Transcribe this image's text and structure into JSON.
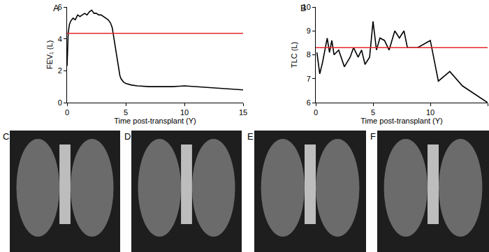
{
  "chart_data": [
    {
      "type": "line",
      "title": "A",
      "x_label": "Time post-transplant (Y)",
      "y_label": "FEV₁ (L)",
      "xlim": [
        0,
        15
      ],
      "xticks": [
        0,
        5,
        10,
        15
      ],
      "ylim": [
        0,
        6
      ],
      "yticks": [
        0,
        2,
        4,
        6
      ],
      "grid": false,
      "series": [
        {
          "color": "#000000",
          "line_style": "solid",
          "x": [
            0,
            0.05,
            0.1,
            0.2,
            0.3,
            0.5,
            0.7,
            0.9,
            1.1,
            1.3,
            1.5,
            1.7,
            1.9,
            2.1,
            2.3,
            2.5,
            2.7,
            2.9,
            3.1,
            3.3,
            3.5,
            3.7,
            3.85,
            4.0,
            4.1,
            4.2,
            4.3,
            4.4,
            4.5,
            4.6,
            4.8,
            5.0,
            5.5,
            6.0,
            7.0,
            8.0,
            9.0,
            10.0,
            11.0,
            12.0,
            13.0,
            14.0,
            15.0
          ],
          "values": [
            2.3,
            3.6,
            4.4,
            4.9,
            5.1,
            5.3,
            5.2,
            5.5,
            5.4,
            5.5,
            5.6,
            5.5,
            5.7,
            5.8,
            5.6,
            5.6,
            5.5,
            5.5,
            5.4,
            5.3,
            5.2,
            5.0,
            4.7,
            4.0,
            3.5,
            3.0,
            2.5,
            2.0,
            1.7,
            1.5,
            1.3,
            1.2,
            1.1,
            1.05,
            1.0,
            1.0,
            1.0,
            1.05,
            1.0,
            0.95,
            0.9,
            0.85,
            0.8
          ]
        },
        {
          "color": "#e8262b",
          "line_style": "solid",
          "x": [
            0,
            15
          ],
          "values": [
            4.35,
            4.35
          ]
        }
      ]
    },
    {
      "type": "line",
      "title": "B",
      "x_label": "Time post-transplant (Y)",
      "y_label": "TLC (L)",
      "xlim": [
        0,
        15
      ],
      "xticks": [
        0,
        5,
        10,
        15
      ],
      "ylim": [
        6,
        10
      ],
      "yticks": [
        6,
        7,
        8,
        9,
        10
      ],
      "grid": false,
      "series": [
        {
          "color": "#000000",
          "line_style": "solid",
          "x": [
            0.1,
            0.35,
            0.6,
            1.0,
            1.2,
            1.4,
            1.6,
            2.0,
            2.5,
            3.0,
            3.3,
            3.7,
            4.0,
            4.3,
            4.7,
            5.0,
            5.3,
            5.6,
            6.0,
            6.4,
            6.9,
            7.3,
            7.7,
            8.0,
            8.9,
            10.0,
            10.7,
            11.7,
            12.8,
            15.0
          ],
          "values": [
            8.1,
            7.2,
            7.7,
            8.7,
            8.1,
            8.6,
            8.0,
            8.2,
            7.5,
            7.9,
            8.3,
            7.9,
            8.2,
            7.6,
            7.9,
            9.4,
            8.2,
            8.7,
            8.6,
            8.2,
            9.0,
            8.7,
            9.0,
            8.3,
            8.3,
            8.6,
            6.9,
            7.3,
            6.7,
            6.0
          ]
        },
        {
          "color": "#e8262b",
          "line_style": "solid",
          "x": [
            0,
            15
          ],
          "values": [
            8.3,
            8.3
          ]
        }
      ]
    }
  ],
  "images": [
    {
      "label": "C"
    },
    {
      "label": "D"
    },
    {
      "label": "E"
    },
    {
      "label": "F"
    }
  ]
}
